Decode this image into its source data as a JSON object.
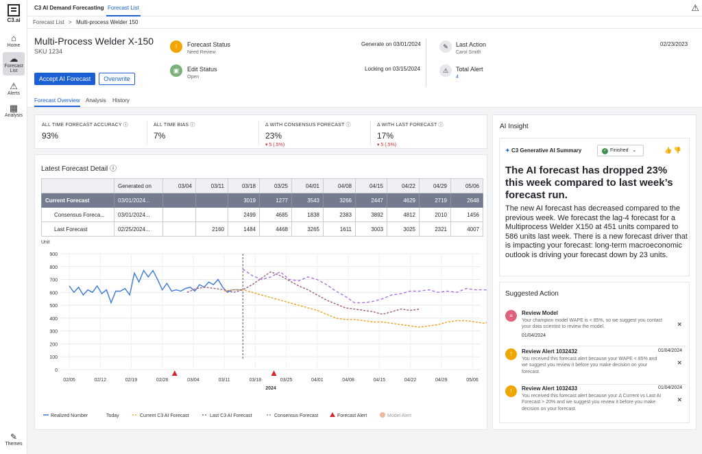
{
  "app": {
    "logo_text": "C3.ai",
    "title": "C3 AI Demand Forecasting",
    "tab": "Forecast List"
  },
  "sidebar": [
    {
      "label": "Home"
    },
    {
      "label": "Forecast List"
    },
    {
      "label": "Alerts"
    },
    {
      "label": "Analysis"
    }
  ],
  "themes_label": "Themes",
  "breadcrumb": {
    "root": "Forecast List",
    "sep": ">",
    "current": "Multi-process Welder 150"
  },
  "product": {
    "title": "Multi-Process Welder X-150",
    "sku": "SKU 1234"
  },
  "buttons": {
    "accept": "Accept AI Forecast",
    "overwrite": "Overwrite"
  },
  "subtabs": [
    "Forecast Overview",
    "Analysis",
    "History"
  ],
  "status": {
    "forecast_status": {
      "label": "Forecast Status",
      "value": "Need Review",
      "date": "Generate on 03/01/2024"
    },
    "edit_status": {
      "label": "Edit Status",
      "value": "Open",
      "date": "Locking on 03/15/2024"
    },
    "last_action": {
      "label": "Last Action",
      "value": "Carol Smith",
      "date": "02/23/2023"
    },
    "total_alert": {
      "label": "Total Alert",
      "value": "4"
    }
  },
  "kpis": [
    {
      "label": "ALL TIME FORECAST ACCURACY",
      "value": "93%",
      "delta": ""
    },
    {
      "label": "ALL TIME BIAS",
      "value": "7%",
      "delta": ""
    },
    {
      "label": "Δ WITH CONSENSUS FORECAST",
      "value": "23%",
      "delta": "▾ 5 (.5%)"
    },
    {
      "label": "Δ WITH LAST FORECAST",
      "value": "17%",
      "delta": "▾ 5 (.5%)"
    }
  ],
  "detail_title": "Latest Forecast Detail",
  "table": {
    "headers": [
      "",
      "Generated on",
      "03/04",
      "03/11",
      "03/18",
      "03/25",
      "04/01",
      "04/08",
      "04/15",
      "04/22",
      "04/29",
      "05/06"
    ],
    "rows": [
      {
        "name": "Current Forecast",
        "gen": "03/01/2024...",
        "vals": [
          "",
          "",
          "3019",
          "1277",
          "3543",
          "3266",
          "2447",
          "4629",
          "2719",
          "2648"
        ]
      },
      {
        "name": "Consensus Foreca...",
        "gen": "03/01/2024...",
        "vals": [
          "",
          "",
          "2499",
          "4685",
          "1838",
          "2383",
          "3892",
          "4812",
          "2010",
          "1456"
        ]
      },
      {
        "name": "Last Forecast",
        "gen": "02/25/2024...",
        "vals": [
          "",
          "2160",
          "1484",
          "4468",
          "3265",
          "1611",
          "3003",
          "3025",
          "2321",
          "4007"
        ]
      }
    ]
  },
  "chart_data": {
    "type": "line",
    "ylabel": "Unit",
    "xlabel": "2024",
    "ylim": [
      0,
      900
    ],
    "yticks": [
      0,
      100,
      200,
      300,
      400,
      500,
      600,
      700,
      800,
      900
    ],
    "xticks": [
      "02/05",
      "02/12",
      "02/19",
      "02/26",
      "03/04",
      "03/11",
      "03/18",
      "03/25",
      "04/01",
      "04/08",
      "04/15",
      "04/22",
      "04/29",
      "05/06"
    ],
    "today_index": 5.6,
    "legend": [
      "Realized Number",
      "Today",
      "Current C3 AI Forecast",
      "Last C3 AI Forecast",
      "Consensus Forecast",
      "Forecast Alert",
      "Model Alert"
    ],
    "colors": {
      "realized": "#3a77d6",
      "current": "#f0a020",
      "last": "#a05a80",
      "consensus": "#a970e0",
      "alert": "#d0282e",
      "model": "#f2b6a0"
    },
    "series": [
      {
        "name": "Realized Number",
        "x": [
          0,
          0.15,
          0.3,
          0.45,
          0.6,
          0.75,
          0.9,
          1.05,
          1.2,
          1.35,
          1.5,
          1.65,
          1.8,
          1.95,
          2.1,
          2.25,
          2.4,
          2.55,
          2.7,
          2.85,
          3.0,
          3.15,
          3.3,
          3.45,
          3.6,
          3.75,
          3.9,
          4.05,
          4.2,
          4.35,
          4.5,
          4.65,
          4.8,
          4.95,
          5.1,
          5.25,
          5.4,
          5.55
        ],
        "values": [
          650,
          600,
          640,
          580,
          620,
          600,
          650,
          590,
          620,
          520,
          610,
          610,
          630,
          580,
          750,
          680,
          770,
          720,
          770,
          700,
          620,
          670,
          610,
          620,
          610,
          630,
          640,
          610,
          660,
          640,
          680,
          660,
          700,
          640,
          600,
          620,
          620,
          620
        ]
      },
      {
        "name": "Current C3 AI Forecast",
        "x": [
          5.0,
          5.3,
          5.6,
          5.9,
          6.2,
          6.5,
          6.8,
          7.1,
          7.4,
          7.7,
          8.0,
          8.3,
          8.6,
          8.9,
          9.2,
          9.5,
          9.8,
          10.1,
          10.4,
          10.7,
          11.0,
          11.3,
          11.6,
          11.9,
          12.2,
          12.5,
          12.8,
          13.1,
          13.4,
          13.7
        ],
        "values": [
          610,
          620,
          620,
          600,
          580,
          560,
          540,
          520,
          500,
          480,
          460,
          430,
          400,
          390,
          390,
          380,
          370,
          370,
          360,
          350,
          340,
          330,
          340,
          350,
          370,
          380,
          380,
          370,
          360,
          390
        ]
      },
      {
        "name": "Last C3 AI Forecast",
        "x": [
          3.8,
          4.1,
          4.4,
          4.7,
          5.0,
          5.3,
          5.6,
          5.9,
          6.2,
          6.5,
          6.8,
          7.1,
          7.4,
          7.7,
          8.0,
          8.3,
          8.6,
          8.9,
          9.2,
          9.5,
          9.8,
          10.1,
          10.4,
          10.7,
          11.0,
          11.3
        ],
        "values": [
          600,
          630,
          640,
          630,
          620,
          600,
          620,
          660,
          710,
          760,
          730,
          690,
          650,
          620,
          580,
          540,
          510,
          480,
          470,
          460,
          450,
          430,
          450,
          470,
          460,
          470
        ]
      },
      {
        "name": "Consensus Forecast",
        "x": [
          5.6,
          5.9,
          6.2,
          6.5,
          6.8,
          7.1,
          7.4,
          7.7,
          8.0,
          8.3,
          8.6,
          8.9,
          9.2,
          9.5,
          9.8,
          10.1,
          10.4,
          10.7,
          11.0,
          11.3,
          11.6,
          11.9,
          12.2,
          12.5,
          12.8,
          13.1,
          13.4,
          13.7
        ],
        "values": [
          780,
          730,
          700,
          720,
          760,
          700,
          690,
          720,
          700,
          660,
          610,
          570,
          520,
          520,
          530,
          550,
          580,
          590,
          610,
          610,
          620,
          600,
          610,
          600,
          630,
          620,
          620,
          610
        ]
      }
    ],
    "forecast_alerts_x": [
      3.4,
      6.6
    ]
  },
  "ai": {
    "title": "AI Insight",
    "summary_label": "C3 Generative AI Summary",
    "status": "Finished",
    "headline": "The AI forecast has dropped 23% this week compared to last week’s forecast run.",
    "body": "The new AI forecast has decreased compared to the previous week. We forecast the lag-4 forecast for a Multiprocess Welder X150 at 451 units compared to 586 units last week. There is a new forecast driver that is impacting your forecast: long-term macroeconomic outlook is driving your forecast down by 23 units.",
    "suggested_title": "Suggested Action",
    "actions": [
      {
        "title": "Review Model",
        "date": "",
        "desc": "Your champion model WAPE is < 85%, so we suggest you contact your data scientist to review the model.",
        "date2": "01/04/2024"
      },
      {
        "title": "Review Alert 1032432",
        "date": "01/04/2024",
        "desc": "You received this forecast alert because your WAPE < 85% and we suggest you review it before you make decision on your forecast.",
        "date2": ""
      },
      {
        "title": "Review Alert 1032433",
        "date": "01/04/2024",
        "desc": "You received this forecast alert because your Δ Current vs Last AI Forecast > 20% and we suggest you review it before you make decision on your forecast.",
        "date2": ""
      }
    ]
  }
}
